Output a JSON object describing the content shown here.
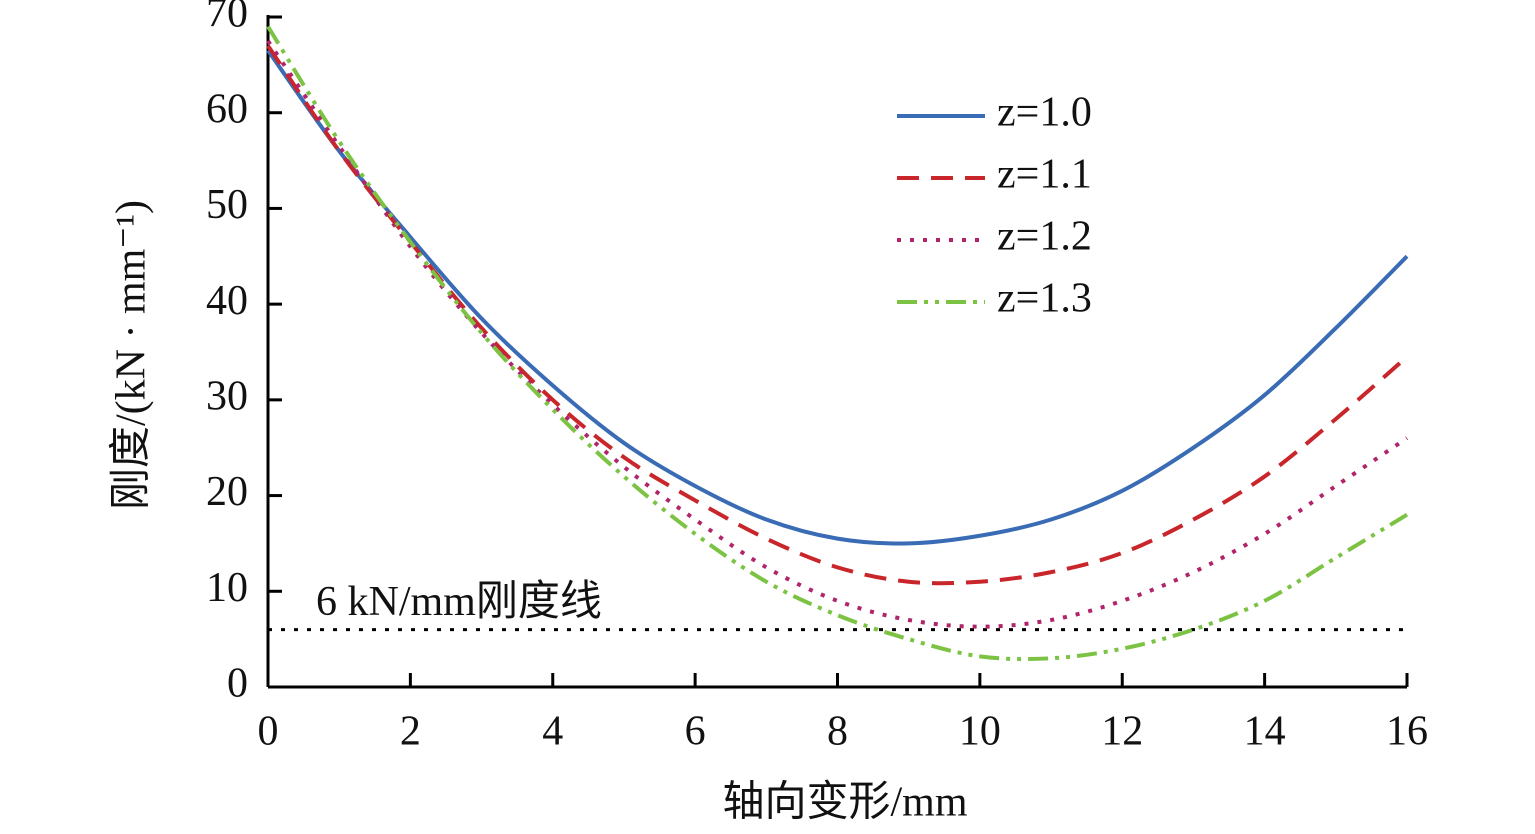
{
  "chart_data": {
    "type": "line",
    "x_label": "轴向变形/mm",
    "y_label": "刚度/(kN · mm⁻¹)",
    "x": [
      0,
      1,
      2,
      3,
      4,
      5,
      6,
      7,
      8,
      9,
      10,
      11,
      12,
      13,
      14,
      15,
      16
    ],
    "series": [
      {
        "name": "z=1.0",
        "color": "#3a6bb5",
        "dash": "solid",
        "values": [
          66.5,
          56,
          47,
          38.5,
          31.5,
          25.5,
          21,
          17.5,
          15.5,
          15,
          15.8,
          17.5,
          20.5,
          25,
          30.5,
          37.5,
          45
        ]
      },
      {
        "name": "z=1.1",
        "color": "#c9262b",
        "dash": "dashed",
        "values": [
          67,
          56,
          46.5,
          37.5,
          30,
          24,
          19.5,
          15.5,
          12.5,
          11,
          11,
          12,
          14,
          17.5,
          22,
          28,
          34.5
        ]
      },
      {
        "name": "z=1.2",
        "color": "#b0246a",
        "dash": "dotted",
        "values": [
          67.5,
          56.5,
          46,
          37,
          29.5,
          23,
          17.5,
          12.5,
          9,
          7,
          6.3,
          7,
          9,
          12,
          16,
          21,
          26
        ]
      },
      {
        "name": "z=1.3",
        "color": "#7cc243",
        "dash": "dashdotdot",
        "values": [
          69,
          57,
          46.5,
          37,
          29,
          22,
          16,
          11,
          7.5,
          5,
          3.2,
          3,
          4,
          6,
          9,
          13.5,
          18
        ]
      }
    ],
    "reference_line": {
      "value": 6,
      "label": "6 kN/mm刚度线",
      "color": "#000000",
      "dash": "dotted"
    },
    "xlim": [
      0,
      16
    ],
    "xticks": [
      0,
      2,
      4,
      6,
      8,
      10,
      12,
      14,
      16
    ],
    "ylim": [
      0,
      70
    ],
    "yticks": [
      0,
      10,
      20,
      30,
      40,
      50,
      60,
      70
    ],
    "legend": "upper right",
    "grid": false
  }
}
